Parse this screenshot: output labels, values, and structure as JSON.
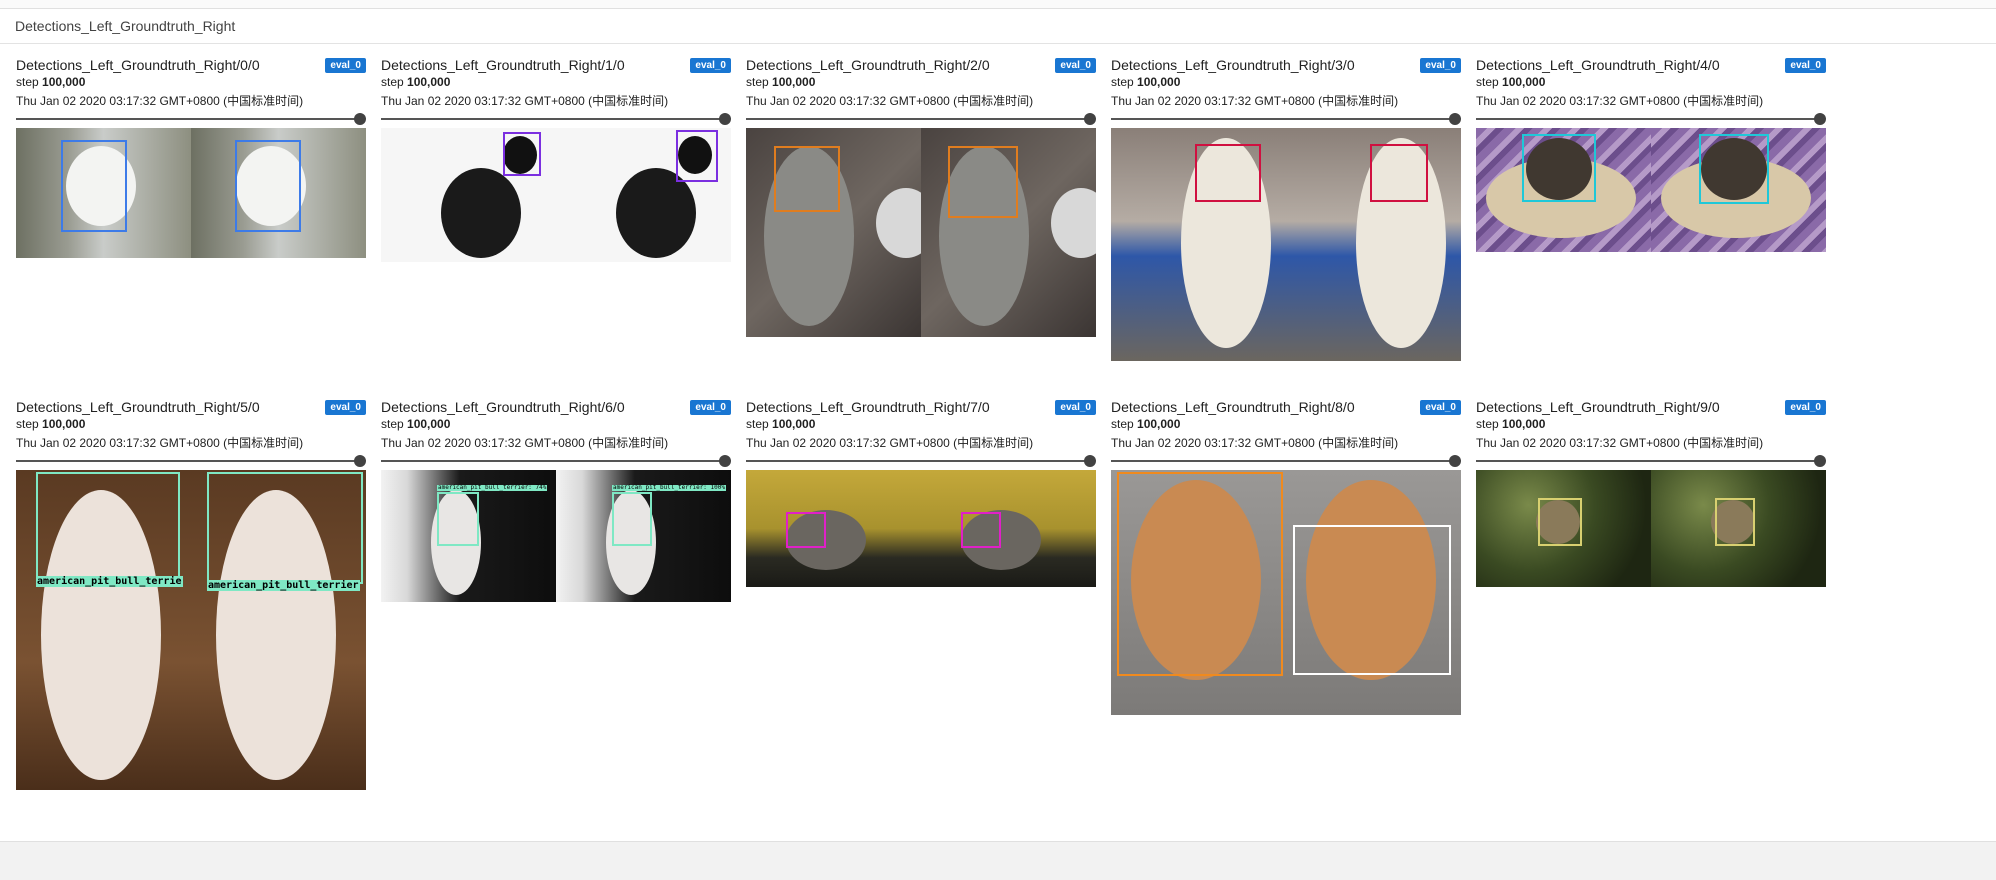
{
  "section_title": "Detections_Left_Groundtruth_Right",
  "cards": [
    {
      "title": "Detections_Left_Groundtruth_Right/0/0",
      "badge": "eval_0",
      "step_label": "step",
      "step_value": "100,000",
      "timestamp": "Thu Jan 02 2020 03:17:32 GMT+0800 (中国标准时间)",
      "box_color": "#3d7be8",
      "det_label": "",
      "gt_label": ""
    },
    {
      "title": "Detections_Left_Groundtruth_Right/1/0",
      "badge": "eval_0",
      "step_label": "step",
      "step_value": "100,000",
      "timestamp": "Thu Jan 02 2020 03:17:32 GMT+0800 (中国标准时间)",
      "box_color": "#7b2fe0",
      "det_label": "",
      "gt_label": ""
    },
    {
      "title": "Detections_Left_Groundtruth_Right/2/0",
      "badge": "eval_0",
      "step_label": "step",
      "step_value": "100,000",
      "timestamp": "Thu Jan 02 2020 03:17:32 GMT+0800 (中国标准时间)",
      "box_color": "#e07d1f",
      "det_label": "",
      "gt_label": ""
    },
    {
      "title": "Detections_Left_Groundtruth_Right/3/0",
      "badge": "eval_0",
      "step_label": "step",
      "step_value": "100,000",
      "timestamp": "Thu Jan 02 2020 03:17:32 GMT+0800 (中国标准时间)",
      "box_color": "#d01040",
      "det_label": "",
      "gt_label": ""
    },
    {
      "title": "Detections_Left_Groundtruth_Right/4/0",
      "badge": "eval_0",
      "step_label": "step",
      "step_value": "100,000",
      "timestamp": "Thu Jan 02 2020 03:17:32 GMT+0800 (中国标准时间)",
      "box_color": "#1fc8d8",
      "det_label": "",
      "gt_label": ""
    },
    {
      "title": "Detections_Left_Groundtruth_Right/5/0",
      "badge": "eval_0",
      "step_label": "step",
      "step_value": "100,000",
      "timestamp": "Thu Jan 02 2020 03:17:32 GMT+0800 (中国标准时间)",
      "box_color": "#7fe8c4",
      "det_label": "american_pit_bull_terrie",
      "gt_label": "american_pit_bull_terrier"
    },
    {
      "title": "Detections_Left_Groundtruth_Right/6/0",
      "badge": "eval_0",
      "step_label": "step",
      "step_value": "100,000",
      "timestamp": "Thu Jan 02 2020 03:17:32 GMT+0800 (中国标准时间)",
      "box_color": "#7fe8c4",
      "det_label": "american_pit_bull_terrier: 74%",
      "gt_label": "american_pit_bull_terrier: 100%"
    },
    {
      "title": "Detections_Left_Groundtruth_Right/7/0",
      "badge": "eval_0",
      "step_label": "step",
      "step_value": "100,000",
      "timestamp": "Thu Jan 02 2020 03:17:32 GMT+0800 (中国标准时间)",
      "box_color": "#e020c8",
      "det_label": "",
      "gt_label": ""
    },
    {
      "title": "Detections_Left_Groundtruth_Right/8/0",
      "badge": "eval_0",
      "step_label": "step",
      "step_value": "100,000",
      "timestamp": "Thu Jan 02 2020 03:17:32 GMT+0800 (中国标准时间)",
      "box_color": "#f08a1e",
      "det_label": "",
      "gt_label": ""
    },
    {
      "title": "Detections_Left_Groundtruth_Right/9/0",
      "badge": "eval_0",
      "step_label": "step",
      "step_value": "100,000",
      "timestamp": "Thu Jan 02 2020 03:17:32 GMT+0800 (中国标准时间)",
      "box_color": "#d8d070",
      "det_label": "",
      "gt_label": ""
    }
  ]
}
